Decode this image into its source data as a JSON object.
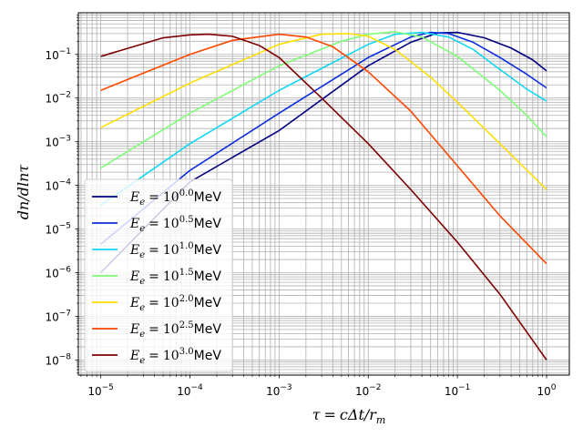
{
  "chart_data": {
    "type": "line",
    "xscale": "log",
    "yscale": "log",
    "xlim": [
      5.6e-06,
      1.8
    ],
    "ylim": [
      4.5e-09,
      0.9
    ],
    "grid": "major and minor",
    "legend_position": "lower-left",
    "xlabel": {
      "main": "τ",
      "rhs": "cΔt/r",
      "sub": "m"
    },
    "ylabel": {
      "main": "dn/dlnτ"
    },
    "xticks": [
      {
        "value": 1e-05,
        "exp": "−5"
      },
      {
        "value": 0.0001,
        "exp": "−4"
      },
      {
        "value": 0.001,
        "exp": "−3"
      },
      {
        "value": 0.01,
        "exp": "−2"
      },
      {
        "value": 0.1,
        "exp": "−1"
      },
      {
        "value": 1,
        "exp": "0"
      }
    ],
    "yticks": [
      {
        "value": 1e-08,
        "exp": "−8"
      },
      {
        "value": 1e-07,
        "exp": "−7"
      },
      {
        "value": 1e-06,
        "exp": "−6"
      },
      {
        "value": 1e-05,
        "exp": "−5"
      },
      {
        "value": 0.0001,
        "exp": "−4"
      },
      {
        "value": 0.001,
        "exp": "−3"
      },
      {
        "value": 0.01,
        "exp": "−2"
      },
      {
        "value": 0.1,
        "exp": "−1"
      }
    ],
    "tick_base": "10",
    "legend_sym": "E",
    "legend_sub": "e",
    "legend_unit": "MeV",
    "series": [
      {
        "exp": "0.0",
        "color": "#00007f",
        "x": [
          1e-05,
          0.0001,
          0.001,
          0.01,
          0.03,
          0.06,
          0.1,
          0.2,
          0.4,
          0.7,
          1
        ],
        "y": [
          1e-06,
          0.00012,
          0.0018,
          0.055,
          0.19,
          0.31,
          0.32,
          0.24,
          0.14,
          0.075,
          0.042
        ]
      },
      {
        "exp": "0.5",
        "color": "#0c2ddd",
        "x": [
          1e-05,
          0.0001,
          0.001,
          0.01,
          0.03,
          0.05,
          0.08,
          0.15,
          0.3,
          0.6,
          1
        ],
        "y": [
          4.5e-06,
          0.00022,
          0.0045,
          0.085,
          0.25,
          0.32,
          0.3,
          0.19,
          0.085,
          0.035,
          0.017
        ]
      },
      {
        "exp": "1.0",
        "color": "#11d7f5",
        "x": [
          1e-05,
          0.0001,
          0.001,
          0.01,
          0.02,
          0.04,
          0.08,
          0.15,
          0.3,
          0.6,
          1
        ],
        "y": [
          3.5e-05,
          0.0009,
          0.015,
          0.17,
          0.29,
          0.32,
          0.25,
          0.13,
          0.045,
          0.016,
          0.0085
        ]
      },
      {
        "exp": "1.5",
        "color": "#7fff77",
        "x": [
          1e-05,
          0.0001,
          0.001,
          0.005,
          0.01,
          0.02,
          0.04,
          0.1,
          0.3,
          0.6,
          1
        ],
        "y": [
          0.00025,
          0.0045,
          0.055,
          0.2,
          0.29,
          0.33,
          0.25,
          0.09,
          0.015,
          0.004,
          0.0013
        ]
      },
      {
        "exp": "2.0",
        "color": "#ffdf00",
        "x": [
          1e-05,
          0.0001,
          0.001,
          0.003,
          0.006,
          0.01,
          0.02,
          0.05,
          0.1,
          0.3,
          1
        ],
        "y": [
          0.0021,
          0.022,
          0.17,
          0.29,
          0.3,
          0.26,
          0.13,
          0.03,
          0.008,
          0.0009,
          8e-05
        ]
      },
      {
        "exp": "2.5",
        "color": "#ff4700",
        "x": [
          1e-05,
          0.0001,
          0.0003,
          0.001,
          0.002,
          0.004,
          0.01,
          0.03,
          0.1,
          0.3,
          1
        ],
        "y": [
          0.015,
          0.1,
          0.21,
          0.29,
          0.25,
          0.15,
          0.04,
          0.005,
          0.00028,
          2e-05,
          1.6e-06
        ]
      },
      {
        "exp": "3.0",
        "color": "#7f0000",
        "x": [
          1e-05,
          5e-05,
          0.0001,
          0.00016,
          0.0003,
          0.0006,
          0.001,
          0.003,
          0.01,
          0.03,
          0.1,
          0.3,
          1
        ],
        "y": [
          0.09,
          0.24,
          0.28,
          0.29,
          0.26,
          0.16,
          0.085,
          0.01,
          0.0009,
          8e-05,
          5e-06,
          3.2e-07,
          1e-08
        ]
      }
    ]
  }
}
